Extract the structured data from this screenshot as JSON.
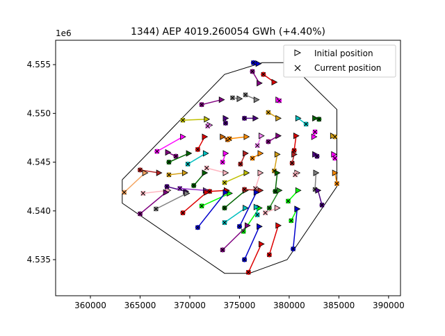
{
  "chart_data": {
    "type": "scatter",
    "title": "1344) AEP 4019.260054 GWh (+4.40%)",
    "xlabel": "",
    "ylabel": "",
    "y_offset_label": "1e6",
    "xlim": [
      356500,
      391200
    ],
    "ylim": [
      4531300,
      4557500
    ],
    "xticks": [
      360000,
      365000,
      370000,
      375000,
      380000,
      385000,
      390000
    ],
    "xtick_labels": [
      "360000",
      "365000",
      "370000",
      "375000",
      "380000",
      "385000",
      "390000"
    ],
    "yticks": [
      4535000,
      4540000,
      4545000,
      4550000,
      4555000
    ],
    "ytick_labels": [
      "4.535",
      "4.540",
      "4.545",
      "4.550",
      "4.555"
    ],
    "grid": false,
    "legend": {
      "position": "top-right",
      "entries": [
        {
          "label": "Initial position",
          "marker": "triangle-right"
        },
        {
          "label": "Current position",
          "marker": "x"
        }
      ]
    },
    "boundary": [
      [
        363200,
        4543200
      ],
      [
        373500,
        4554000
      ],
      [
        377300,
        4555200
      ],
      [
        380000,
        4555200
      ],
      [
        384800,
        4550400
      ],
      [
        384800,
        4542500
      ],
      [
        379800,
        4535000
      ],
      [
        376000,
        4533600
      ],
      [
        373500,
        4533600
      ],
      [
        363200,
        4540800
      ],
      [
        363200,
        4543200
      ]
    ],
    "turbines": [
      {
        "initial": [
          376900,
          4555100
        ],
        "current": [
          376400,
          4555200
        ],
        "color": "#0000cc"
      },
      {
        "initial": [
          377000,
          4553100
        ],
        "current": [
          376300,
          4554300
        ],
        "color": "#800080"
      },
      {
        "initial": [
          378500,
          4553200
        ],
        "current": [
          377400,
          4554000
        ],
        "color": "#dd0000"
      },
      {
        "initial": [
          376700,
          4551400
        ],
        "current": [
          375600,
          4551900
        ],
        "color": "#808080"
      },
      {
        "initial": [
          375000,
          4551500
        ],
        "current": [
          374300,
          4551600
        ],
        "color": "#808080"
      },
      {
        "initial": [
          378900,
          4551400
        ],
        "current": [
          379000,
          4551300
        ],
        "color": "#ff00ff"
      },
      {
        "initial": [
          373200,
          4551400
        ],
        "current": [
          371200,
          4550900
        ],
        "color": "#800080"
      },
      {
        "initial": [
          378900,
          4549500
        ],
        "current": [
          377900,
          4550100
        ],
        "color": "#d4a017"
      },
      {
        "initial": [
          380900,
          4549500
        ],
        "current": [
          381700,
          4548900
        ],
        "color": "#00bfbf"
      },
      {
        "initial": [
          382600,
          4549500
        ],
        "current": [
          383000,
          4549400
        ],
        "color": "#006400"
      },
      {
        "initial": [
          376600,
          4549500
        ],
        "current": [
          375500,
          4549500
        ],
        "color": "#4b0082"
      },
      {
        "initial": [
          373600,
          4549500
        ],
        "current": [
          373600,
          4549000
        ],
        "color": "#4b0082"
      },
      {
        "initial": [
          371700,
          4549400
        ],
        "current": [
          369300,
          4549300
        ],
        "color": "#c0c000"
      },
      {
        "initial": [
          372000,
          4548800
        ],
        "current": [
          371800,
          4548700
        ],
        "color": "#ee82ee"
      },
      {
        "initial": [
          369300,
          4547600
        ],
        "current": [
          366700,
          4546100
        ],
        "color": "#ff00ff"
      },
      {
        "initial": [
          373300,
          4547600
        ],
        "current": [
          373800,
          4547300
        ],
        "color": "#cc6600"
      },
      {
        "initial": [
          375700,
          4547600
        ],
        "current": [
          374000,
          4547400
        ],
        "color": "#ff8c00"
      },
      {
        "initial": [
          377200,
          4547700
        ],
        "current": [
          376800,
          4546700
        ],
        "color": "#ee82ee"
      },
      {
        "initial": [
          378900,
          4547700
        ],
        "current": [
          377900,
          4547100
        ],
        "color": "#800080"
      },
      {
        "initial": [
          380700,
          4547700
        ],
        "current": [
          380500,
          4546200
        ],
        "color": "#dd0000"
      },
      {
        "initial": [
          382500,
          4547600
        ],
        "current": [
          382600,
          4548100
        ],
        "color": "#ff00ff"
      },
      {
        "initial": [
          384400,
          4547700
        ],
        "current": [
          384600,
          4547600
        ],
        "color": "#d4a017"
      },
      {
        "initial": [
          371500,
          4547600
        ],
        "current": [
          370800,
          4546300
        ],
        "color": "#dd0000"
      },
      {
        "initial": [
          367800,
          4546000
        ],
        "current": [
          368600,
          4545600
        ],
        "color": "#800080"
      },
      {
        "initial": [
          369900,
          4545900
        ],
        "current": [
          367900,
          4545000
        ],
        "color": "#006400"
      },
      {
        "initial": [
          371600,
          4545900
        ],
        "current": [
          369800,
          4544800
        ],
        "color": "#00bfbf"
      },
      {
        "initial": [
          373600,
          4545900
        ],
        "current": [
          373300,
          4545000
        ],
        "color": "#ff00ff"
      },
      {
        "initial": [
          375600,
          4545900
        ],
        "current": [
          375100,
          4544800
        ],
        "color": "#b22222"
      },
      {
        "initial": [
          377100,
          4545900
        ],
        "current": [
          376300,
          4545400
        ],
        "color": "#ff8c00"
      },
      {
        "initial": [
          378800,
          4545800
        ],
        "current": [
          378500,
          4544100
        ],
        "color": "#d4a017"
      },
      {
        "initial": [
          380500,
          4545800
        ],
        "current": [
          380300,
          4544900
        ],
        "color": "#b22222"
      },
      {
        "initial": [
          382600,
          4545800
        ],
        "current": [
          382800,
          4545600
        ],
        "color": "#4b0082"
      },
      {
        "initial": [
          384500,
          4545800
        ],
        "current": [
          384600,
          4545400
        ],
        "color": "#ff00ff"
      },
      {
        "initial": [
          366900,
          4543900
        ],
        "current": [
          365000,
          4544200
        ],
        "color": "#b22222"
      },
      {
        "initial": [
          369500,
          4543900
        ],
        "current": [
          367900,
          4543700
        ],
        "color": "#d4a017"
      },
      {
        "initial": [
          371500,
          4543900
        ],
        "current": [
          370400,
          4542600
        ],
        "color": "#006400"
      },
      {
        "initial": [
          373600,
          4543900
        ],
        "current": [
          371700,
          4544400
        ],
        "color": "#ffb6c1"
      },
      {
        "initial": [
          375700,
          4543900
        ],
        "current": [
          373500,
          4542900
        ],
        "color": "#c0c000"
      },
      {
        "initial": [
          377100,
          4543900
        ],
        "current": [
          376600,
          4542300
        ],
        "color": "#ffb6c1"
      },
      {
        "initial": [
          378800,
          4543900
        ],
        "current": [
          378600,
          4542000
        ],
        "color": "#006400"
      },
      {
        "initial": [
          380800,
          4543900
        ],
        "current": [
          380600,
          4543700
        ],
        "color": "#ffb6c1"
      },
      {
        "initial": [
          382700,
          4543900
        ],
        "current": [
          382600,
          4542200
        ],
        "color": "#808080"
      },
      {
        "initial": [
          384600,
          4543900
        ],
        "current": [
          384800,
          4542800
        ],
        "color": "#ff8c00"
      },
      {
        "initial": [
          365500,
          4543900
        ],
        "current": [
          363400,
          4541900
        ],
        "color": "#f4a460"
      },
      {
        "initial": [
          367800,
          4542100
        ],
        "current": [
          365300,
          4541800
        ],
        "color": "#ffb6c1"
      },
      {
        "initial": [
          369600,
          4542000
        ],
        "current": [
          367700,
          4542500
        ],
        "color": "#4b0082"
      },
      {
        "initial": [
          371600,
          4542100
        ],
        "current": [
          369000,
          4542300
        ],
        "color": "#9932cc"
      },
      {
        "initial": [
          373700,
          4542100
        ],
        "current": [
          372000,
          4542000
        ],
        "color": "#dd0000"
      },
      {
        "initial": [
          375600,
          4542100
        ],
        "current": [
          373500,
          4540300
        ],
        "color": "#006400"
      },
      {
        "initial": [
          377100,
          4542100
        ],
        "current": [
          375500,
          4542200
        ],
        "color": "#b22222"
      },
      {
        "initial": [
          379000,
          4542100
        ],
        "current": [
          378000,
          4540300
        ],
        "color": "#228b22"
      },
      {
        "initial": [
          380900,
          4542100
        ],
        "current": [
          379900,
          4541000
        ],
        "color": "#00ff00"
      },
      {
        "initial": [
          382900,
          4542100
        ],
        "current": [
          383300,
          4540600
        ],
        "color": "#4b0082"
      },
      {
        "initial": [
          369700,
          4541800
        ],
        "current": [
          366600,
          4540200
        ],
        "color": "#808080"
      },
      {
        "initial": [
          367600,
          4541900
        ],
        "current": [
          365000,
          4539700
        ],
        "color": "#800080"
      },
      {
        "initial": [
          371700,
          4541900
        ],
        "current": [
          369300,
          4539800
        ],
        "color": "#dd0000"
      },
      {
        "initial": [
          374000,
          4541800
        ],
        "current": [
          371200,
          4540500
        ],
        "color": "#00ff00"
      },
      {
        "initial": [
          375600,
          4540300
        ],
        "current": [
          373500,
          4538800
        ],
        "color": "#00bfbf"
      },
      {
        "initial": [
          377000,
          4540300
        ],
        "current": [
          375400,
          4537900
        ],
        "color": "#00ff00"
      },
      {
        "initial": [
          378800,
          4540300
        ],
        "current": [
          377600,
          4539800
        ],
        "color": "#ffb6c1"
      },
      {
        "initial": [
          380800,
          4540200
        ],
        "current": [
          380200,
          4539000
        ],
        "color": "#00ff00"
      },
      {
        "initial": [
          376700,
          4541900
        ],
        "current": [
          375000,
          4538400
        ],
        "color": "#0000cc"
      },
      {
        "initial": [
          376700,
          4540400
        ],
        "current": [
          376800,
          4539600
        ],
        "color": "#00bfbf"
      },
      {
        "initial": [
          373600,
          4541900
        ],
        "current": [
          370800,
          4538300
        ],
        "color": "#0000cc"
      },
      {
        "initial": [
          375800,
          4538500
        ],
        "current": [
          373300,
          4536000
        ],
        "color": "#800080"
      },
      {
        "initial": [
          377000,
          4538400
        ],
        "current": [
          375500,
          4535000
        ],
        "color": "#0000cc"
      },
      {
        "initial": [
          378900,
          4538500
        ],
        "current": [
          378000,
          4535500
        ],
        "color": "#dd0000"
      },
      {
        "initial": [
          380800,
          4540200
        ],
        "current": [
          380400,
          4536100
        ],
        "color": "#0000cc"
      },
      {
        "initial": [
          377200,
          4536600
        ],
        "current": [
          375900,
          4533700
        ],
        "color": "#dd0000"
      }
    ]
  }
}
